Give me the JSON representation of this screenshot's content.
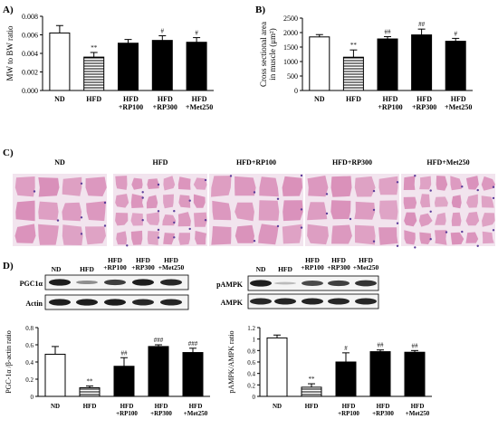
{
  "colors": {
    "hatch": "#000000",
    "bar_dark": "#000000",
    "bar_light": "#ffffff",
    "he_bg": "#f2e4ee",
    "he_fiber": "#d98fb9",
    "he_nuclei": "#5b3c9a"
  },
  "panel_letters": [
    "A)",
    "B)",
    "C)",
    "D)"
  ],
  "groups": [
    "ND",
    "HFD",
    "HFD\n+RP100",
    "HFD\n+RP300",
    "HFD\n+Met250"
  ],
  "micro_labels": [
    "ND",
    "HFD",
    "HFD+RP100",
    "HFD+RP300",
    "HFD+Met250"
  ],
  "blot_left": {
    "headers": [
      "ND",
      "HFD",
      "HFD\n+RP100",
      "HFD\n+RP300",
      "HFD\n+Met250"
    ],
    "rows": [
      "PGC1α",
      "Actin"
    ]
  },
  "blot_right": {
    "headers": [
      "ND",
      "HFD",
      "HFD\n+RP100",
      "HFD\n+RP300",
      "HFD\n+Met250"
    ],
    "rows": [
      "pAMPK",
      "AMPK"
    ]
  },
  "chart_data": [
    {
      "type": "bar",
      "panel": "A)",
      "categories": [
        "ND",
        "HFD",
        "HFD +RP100",
        "HFD +RP300",
        "HFD +Met250"
      ],
      "values": [
        0.0062,
        0.0036,
        0.0051,
        0.0054,
        0.0052
      ],
      "errors": [
        0.0008,
        0.0005,
        0.0004,
        0.0005,
        0.0005
      ],
      "annotations": [
        "",
        "**",
        "",
        "#",
        "#"
      ],
      "ylabel": "MW to BW ratio",
      "ylim": [
        0,
        0.008
      ],
      "yticks": [
        "0.000",
        "0.002",
        "0.004",
        "0.006",
        "0.008"
      ]
    },
    {
      "type": "bar",
      "panel": "B)",
      "categories": [
        "ND",
        "HFD",
        "HFD +RP100",
        "HFD +RP300",
        "HFD +Met250"
      ],
      "values": [
        1850,
        1150,
        1780,
        1920,
        1700
      ],
      "errors": [
        80,
        250,
        80,
        200,
        100
      ],
      "annotations": [
        "",
        "**",
        "##",
        "##",
        "#"
      ],
      "ylabel": "Cross sectional area in muscle (μm²)",
      "ylim": [
        0,
        2500
      ],
      "yticks": [
        "0",
        "500",
        "1000",
        "1500",
        "2000",
        "2500"
      ]
    },
    {
      "type": "bar",
      "panel": "D-left",
      "categories": [
        "ND",
        "HFD",
        "HFD +RP100",
        "HFD +RP300",
        "HFD +Met250"
      ],
      "values": [
        0.49,
        0.1,
        0.35,
        0.58,
        0.51
      ],
      "errors": [
        0.09,
        0.02,
        0.1,
        0.02,
        0.05
      ],
      "annotations": [
        "",
        "**",
        "##",
        "###",
        "###"
      ],
      "ylabel": "PGC-1α /β-actin ratio",
      "ylim": [
        0,
        0.8
      ],
      "yticks": [
        "0",
        "0.2",
        "0.4",
        "0.6",
        "0.8"
      ]
    },
    {
      "type": "bar",
      "panel": "D-right",
      "categories": [
        "ND",
        "HFD",
        "HFD +RP100",
        "HFD +RP300",
        "HFD +Met250"
      ],
      "values": [
        1.02,
        0.16,
        0.6,
        0.78,
        0.77
      ],
      "errors": [
        0.05,
        0.06,
        0.16,
        0.03,
        0.03
      ],
      "annotations": [
        "",
        "**",
        "#",
        "##",
        "##"
      ],
      "ylabel": "pAMPK/AMPK ratio",
      "ylim": [
        0,
        1.2
      ],
      "yticks": [
        "0",
        "0.2",
        "0.4",
        "0.6",
        "0.8",
        "1",
        "1.2"
      ]
    }
  ]
}
